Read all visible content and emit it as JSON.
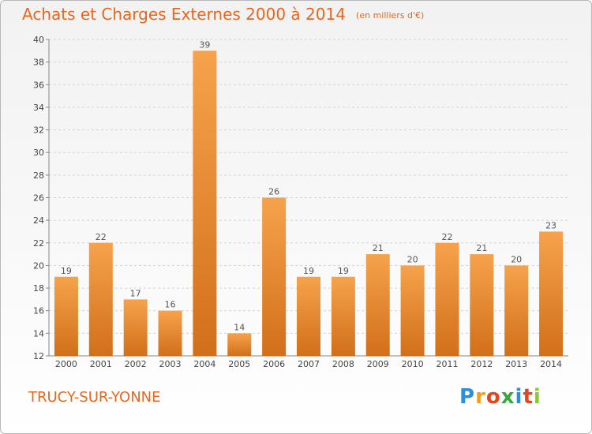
{
  "header": {
    "title": "Achats et Charges Externes 2000 à 2014",
    "unit": "(en milliers d'€)"
  },
  "footer": {
    "commune": "TRUCY-SUR-YONNE",
    "logo_letters": [
      "P",
      "r",
      "o",
      "x",
      "i",
      "t",
      "i"
    ],
    "logo_colors": [
      "#2e8fd6",
      "#f2a01c",
      "#e2461f",
      "#3aa63f",
      "#2e8fd6",
      "#e2461f",
      "#8cc63f"
    ]
  },
  "colors": {
    "accent": "#e8661d",
    "bar_light": "#f6a24c",
    "bar_dark": "#d26f1a",
    "grid": "#d4d4d4"
  },
  "chart_data": {
    "type": "bar",
    "title": "Achats et Charges Externes 2000 à 2014",
    "subtitle": "(en milliers d'€)",
    "xlabel": "",
    "ylabel": "",
    "categories": [
      "2000",
      "2001",
      "2002",
      "2003",
      "2004",
      "2005",
      "2006",
      "2007",
      "2008",
      "2009",
      "2010",
      "2011",
      "2012",
      "2013",
      "2014"
    ],
    "values": [
      19,
      22,
      17,
      16,
      39,
      14,
      26,
      19,
      19,
      21,
      20,
      22,
      21,
      20,
      23
    ],
    "ylim": [
      12,
      40
    ],
    "yticks": [
      12,
      14,
      16,
      18,
      20,
      22,
      24,
      26,
      28,
      30,
      32,
      34,
      36,
      38,
      40
    ],
    "grid": "horizontal dashed",
    "data_labels": true
  }
}
